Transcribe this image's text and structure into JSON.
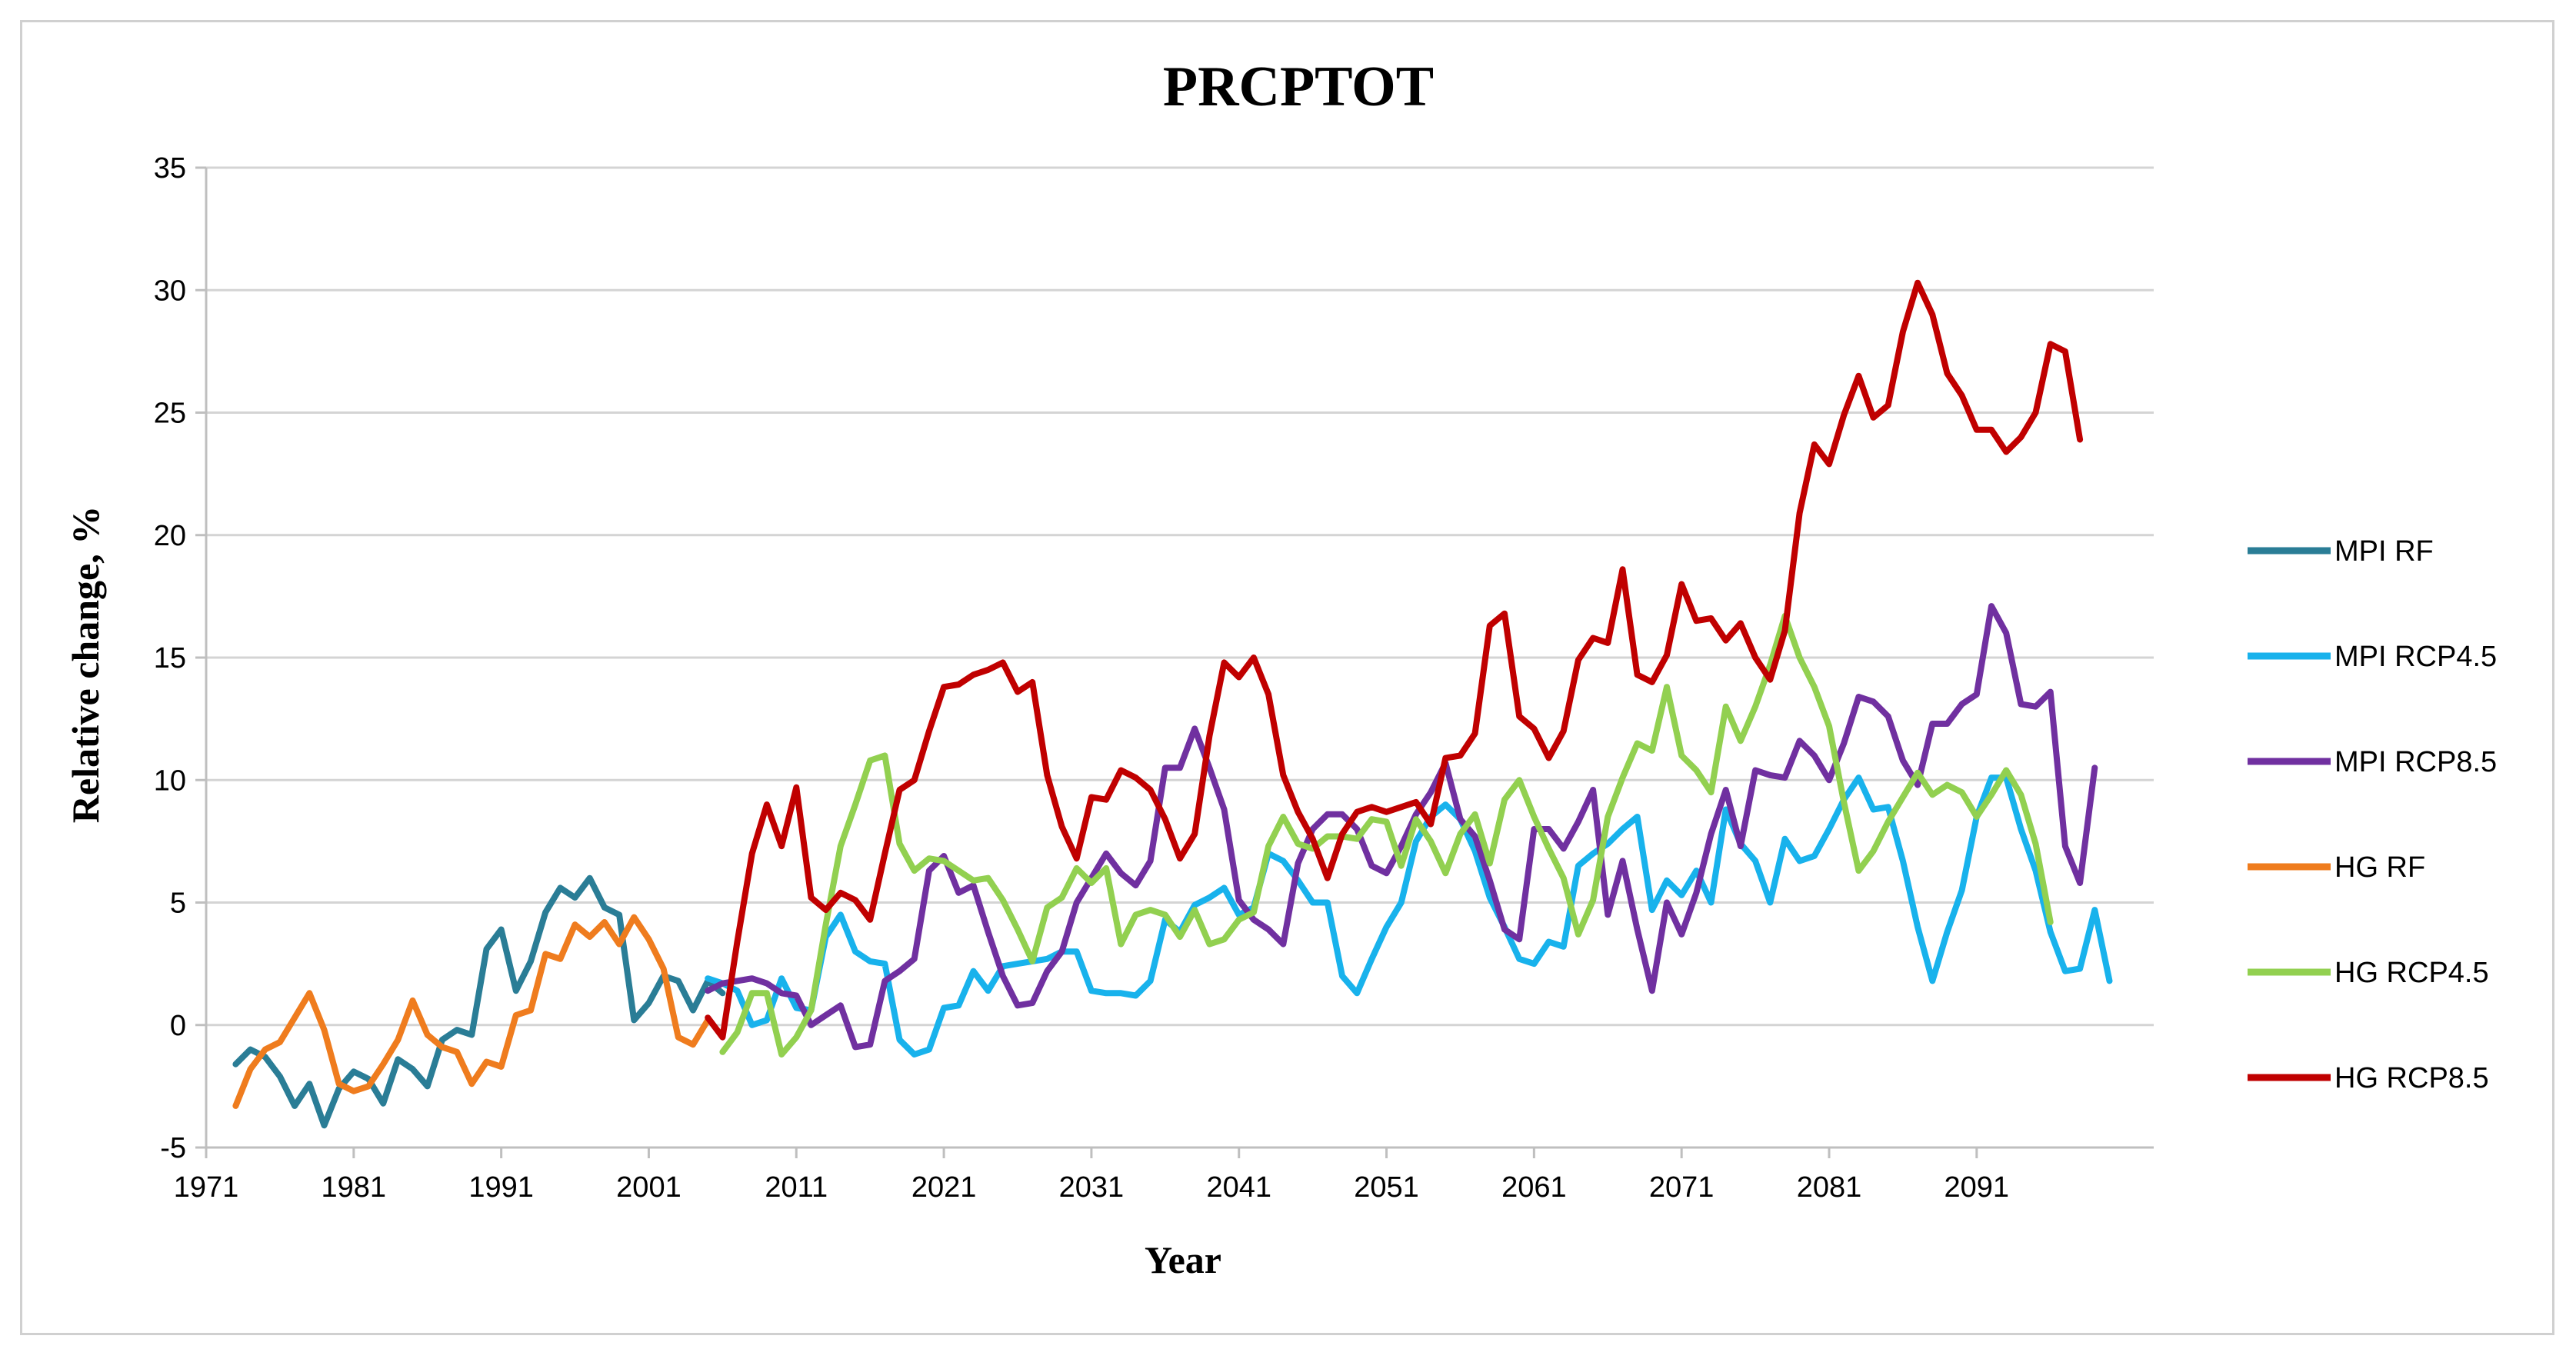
{
  "chart_data": {
    "type": "line",
    "title": "PRCPTOT",
    "xlabel": "Year",
    "ylabel": "Relative change, %",
    "xlim": [
      1971,
      2103
    ],
    "ylim": [
      -5,
      35
    ],
    "x_ticks": [
      1971,
      1981,
      1991,
      2001,
      2011,
      2021,
      2031,
      2041,
      2051,
      2061,
      2071,
      2081,
      2091
    ],
    "y_ticks": [
      -5,
      0,
      5,
      10,
      15,
      20,
      25,
      30,
      35
    ],
    "grid": "horizontal",
    "legend_position": "right",
    "series": [
      {
        "name": "MPI RF",
        "color": "#2a7d96",
        "x_start": 1973,
        "values": [
          -1.6,
          -1.0,
          -1.3,
          -2.1,
          -3.3,
          -2.4,
          -4.1,
          -2.6,
          -1.9,
          -2.2,
          -3.2,
          -1.4,
          -1.8,
          -2.5,
          -0.6,
          -0.2,
          -0.4,
          3.1,
          3.9,
          1.4,
          2.6,
          4.6,
          5.6,
          5.2,
          6.0,
          4.8,
          4.5,
          0.2,
          0.9,
          2.0,
          1.8,
          0.6,
          1.8,
          1.3
        ]
      },
      {
        "name": "MPI RCP4.5",
        "color": "#18b2ec",
        "x_start": 2005,
        "values": [
          1.9,
          1.7,
          1.4,
          0,
          0.2,
          1.9,
          0.7,
          0.6,
          3.6,
          4.5,
          3.0,
          2.6,
          2.5,
          -0.6,
          -1.2,
          -1.0,
          0.7,
          0.8,
          2.2,
          1.4,
          2.4,
          2.5,
          2.6,
          2.7,
          3.0,
          3.0,
          1.4,
          1.3,
          1.3,
          1.2,
          1.8,
          4.3,
          3.8,
          4.9,
          5.2,
          5.6,
          4.5,
          4.8,
          7.0,
          6.7,
          5.9,
          5.0,
          5.0,
          2.0,
          1.3,
          2.7,
          4.0,
          5.0,
          7.5,
          8.5,
          9.0,
          8.4,
          7.1,
          5.2,
          4.0,
          2.7,
          2.5,
          3.4,
          3.2,
          6.5,
          7.0,
          7.4,
          8.0,
          8.5,
          4.7,
          5.9,
          5.3,
          6.3,
          5.0,
          8.8,
          7.4,
          6.7,
          5.0,
          7.6,
          6.7,
          6.9,
          8.0,
          9.2,
          10.1,
          8.8,
          8.9,
          6.7,
          4.0,
          1.8,
          3.8,
          5.5,
          8.5,
          10.1,
          10.1,
          8.0,
          6.3,
          3.8,
          2.2,
          2.3,
          4.7,
          1.8
        ]
      },
      {
        "name": "MPI RCP8.5",
        "color": "#7030a0",
        "x_start": 2005,
        "values": [
          1.4,
          1.7,
          1.8,
          1.9,
          1.7,
          1.3,
          1.2,
          0,
          0.4,
          0.8,
          -0.9,
          -0.8,
          1.8,
          2.2,
          2.7,
          6.3,
          6.9,
          5.4,
          5.7,
          3.8,
          2.0,
          0.8,
          0.9,
          2.2,
          3.0,
          5.0,
          6.0,
          7.0,
          6.2,
          5.7,
          6.7,
          10.5,
          10.5,
          12.1,
          10.5,
          8.8,
          5.1,
          4.3,
          3.9,
          3.3,
          6.6,
          8.0,
          8.6,
          8.6,
          8.0,
          6.5,
          6.2,
          7.3,
          8.6,
          9.5,
          10.7,
          8.4,
          7.7,
          5.9,
          3.9,
          3.5,
          8.0,
          8.0,
          7.2,
          8.3,
          9.6,
          4.5,
          6.7,
          3.9,
          1.4,
          5.0,
          3.7,
          5.4,
          7.8,
          9.6,
          7.3,
          10.4,
          10.2,
          10.1,
          11.6,
          11.0,
          10.0,
          11.5,
          13.4,
          13.2,
          12.6,
          10.8,
          9.8,
          12.3,
          12.3,
          13.1,
          13.5,
          17.1,
          16.0,
          13.1,
          13.0,
          13.6,
          7.3,
          5.8,
          10.5
        ]
      },
      {
        "name": "HG RF",
        "color": "#ef7c1e",
        "x_start": 1973,
        "values": [
          -3.3,
          -1.8,
          -1.0,
          -0.7,
          0.3,
          1.3,
          -0.2,
          -2.4,
          -2.7,
          -2.5,
          -1.6,
          -0.6,
          1.0,
          -0.4,
          -0.9,
          -1.1,
          -2.4,
          -1.5,
          -1.7,
          0.4,
          0.6,
          2.9,
          2.7,
          4.1,
          3.6,
          4.2,
          3.3,
          4.4,
          3.5,
          2.3,
          -0.5,
          -0.8,
          0.2
        ]
      },
      {
        "name": "HG RCP4.5",
        "color": "#92d050",
        "x_start": 2006,
        "values": [
          -1.1,
          -0.3,
          1.3,
          1.3,
          -1.2,
          -0.5,
          0.6,
          4.1,
          7.3,
          9.0,
          10.8,
          11.0,
          7.4,
          6.3,
          6.8,
          6.7,
          6.3,
          5.9,
          6.0,
          5.1,
          3.9,
          2.6,
          4.8,
          5.2,
          6.4,
          5.8,
          6.4,
          3.3,
          4.5,
          4.7,
          4.5,
          3.6,
          4.7,
          3.3,
          3.5,
          4.3,
          4.6,
          7.3,
          8.5,
          7.4,
          7.2,
          7.7,
          7.7,
          7.6,
          8.4,
          8.3,
          6.5,
          8.4,
          7.5,
          6.2,
          7.8,
          8.6,
          6.6,
          9.2,
          10.0,
          8.5,
          7.2,
          6.0,
          3.7,
          5.1,
          8.5,
          10.1,
          11.5,
          11.2,
          13.8,
          11.0,
          10.4,
          9.5,
          13.0,
          11.6,
          13.0,
          14.7,
          16.7,
          15.0,
          13.8,
          12.2,
          9.1,
          6.3,
          7.1,
          8.3,
          9.3,
          10.3,
          9.4,
          9.8,
          9.5,
          8.5,
          9.4,
          10.4,
          9.4,
          7.4,
          4.2
        ]
      },
      {
        "name": "HG RCP8.5",
        "color": "#c00000",
        "x_start": 2005,
        "values": [
          0.3,
          -0.5,
          3.4,
          7.0,
          9.0,
          7.3,
          9.7,
          5.2,
          4.7,
          5.4,
          5.1,
          4.3,
          7.0,
          9.6,
          10.0,
          12.0,
          13.8,
          13.9,
          14.3,
          14.5,
          14.8,
          13.6,
          14.0,
          10.2,
          8.1,
          6.8,
          9.3,
          9.2,
          10.4,
          10.1,
          9.6,
          8.4,
          6.8,
          7.8,
          11.8,
          14.8,
          14.2,
          15.0,
          13.5,
          10.2,
          8.7,
          7.6,
          6.0,
          7.8,
          8.7,
          8.9,
          8.7,
          8.9,
          9.1,
          8.2,
          10.9,
          11.0,
          11.9,
          16.3,
          16.8,
          12.6,
          12.1,
          10.9,
          12.0,
          14.9,
          15.8,
          15.6,
          18.6,
          14.3,
          14.0,
          15.1,
          18.0,
          16.5,
          16.6,
          15.7,
          16.4,
          15.0,
          14.1,
          16.1,
          20.9,
          23.7,
          22.9,
          24.9,
          26.5,
          24.8,
          25.3,
          28.3,
          30.3,
          29.0,
          26.6,
          25.7,
          24.3,
          24.3,
          23.4,
          24.0,
          25.0,
          27.8,
          27.5,
          23.9
        ]
      }
    ]
  }
}
